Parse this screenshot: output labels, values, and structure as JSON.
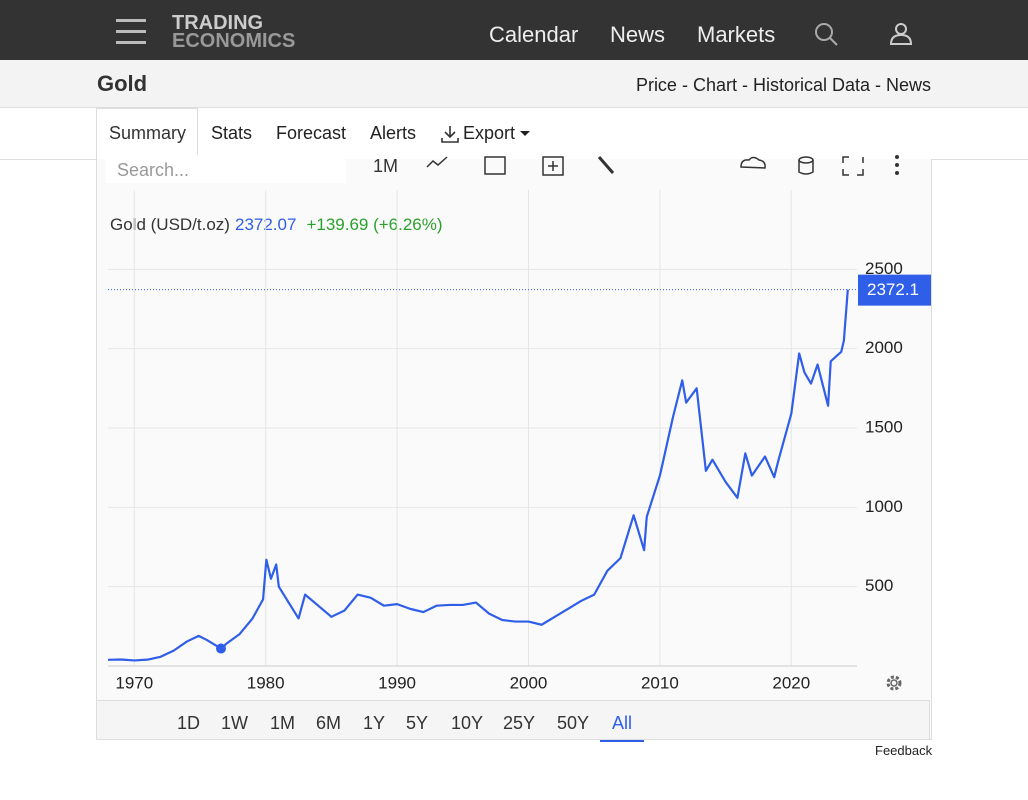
{
  "header": {
    "logo": [
      "TRADING",
      "ECONOMICS"
    ],
    "nav": [
      "Calendar",
      "News",
      "Markets"
    ]
  },
  "subheader": {
    "title": "Gold",
    "links": "Price - Chart - Historical Data - News"
  },
  "tabs": [
    "Summary",
    "Stats",
    "Forecast",
    "Alerts",
    "Export"
  ],
  "toolbar": {
    "search_placeholder": "Search...",
    "interval": "1M"
  },
  "chart_data": {
    "type": "line",
    "legend": {
      "name": "Gold (USD/t.oz)",
      "price": "2372.07",
      "change": "+139.69 (+6.26%)"
    },
    "color": "#2f5ee8",
    "x": [
      1968,
      1969,
      1970,
      1971,
      1972,
      1973,
      1974,
      1974.9,
      1975.5,
      1976.6,
      1977,
      1978,
      1979,
      1979.8,
      1980.05,
      1980.4,
      1980.8,
      1981,
      1982.5,
      1983,
      1984,
      1985,
      1986,
      1987,
      1988,
      1989,
      1990,
      1991,
      1992,
      1993,
      1994,
      1995,
      1996,
      1997,
      1998,
      1999,
      2000,
      2001,
      2002,
      2003,
      2004,
      2005,
      2006,
      2007,
      2008,
      2008.8,
      2009,
      2010,
      2011,
      2011.7,
      2012,
      2012.8,
      2013,
      2013.5,
      2014,
      2015,
      2015.9,
      2016.5,
      2017,
      2018,
      2018.7,
      2019,
      2019.7,
      2020,
      2020.6,
      2021,
      2021.5,
      2022,
      2022.8,
      2023,
      2023.8,
      2024,
      2024.3
    ],
    "values": [
      39,
      41,
      35,
      40,
      58,
      97,
      154,
      190,
      165,
      110,
      140,
      200,
      300,
      420,
      670,
      550,
      640,
      500,
      300,
      450,
      380,
      310,
      350,
      450,
      430,
      380,
      390,
      360,
      340,
      380,
      385,
      385,
      400,
      330,
      290,
      280,
      280,
      260,
      310,
      360,
      410,
      450,
      600,
      680,
      950,
      730,
      940,
      1200,
      1570,
      1800,
      1660,
      1750,
      1600,
      1230,
      1300,
      1160,
      1060,
      1340,
      1200,
      1320,
      1190,
      1290,
      1500,
      1590,
      1970,
      1850,
      1780,
      1900,
      1640,
      1920,
      1980,
      2050,
      2372
    ],
    "highlight_index": 9,
    "xlim": [
      1968,
      2025
    ],
    "ylim": [
      0,
      3000
    ],
    "xticks": [
      1970,
      1980,
      1990,
      2000,
      2010,
      2020
    ],
    "yticks": [
      500,
      1000,
      1500,
      2000,
      2500
    ],
    "grid": true,
    "last_value": 2372.07,
    "last_value_label": "2372.1"
  },
  "ranges": [
    "1D",
    "1W",
    "1M",
    "6M",
    "1Y",
    "5Y",
    "10Y",
    "25Y",
    "50Y",
    "All"
  ],
  "active_range_index": 9,
  "feedback": "Feedback"
}
